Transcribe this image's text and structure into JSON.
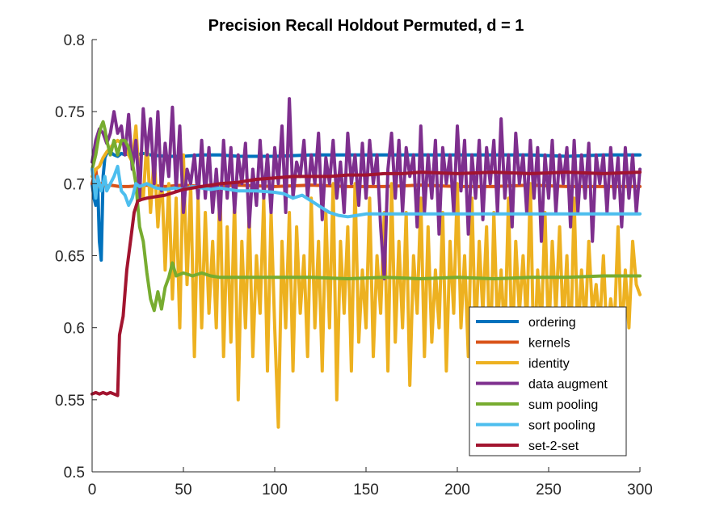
{
  "chart_data": {
    "type": "line",
    "title": "Precision Recall Holdout Permuted, d = 1",
    "xlabel": "",
    "ylabel": "",
    "xlim": [
      0,
      300
    ],
    "ylim": [
      0.5,
      0.8
    ],
    "xticks": [
      0,
      50,
      100,
      150,
      200,
      250,
      300
    ],
    "xtick_labels": [
      "0",
      "50",
      "100",
      "150",
      "200",
      "250",
      "300"
    ],
    "yticks": [
      0.5,
      0.55,
      0.6,
      0.65,
      0.7,
      0.75,
      0.8
    ],
    "ytick_labels": [
      "0.5",
      "0.55",
      "0.6",
      "0.65",
      "0.7",
      "0.75",
      "0.8"
    ],
    "grid": false,
    "legend_position": "bottom-right",
    "series": [
      {
        "name": "ordering",
        "color": "#0072BD",
        "x": [
          0,
          1,
          2,
          3,
          4,
          5,
          6,
          7,
          8,
          10,
          12,
          14,
          16,
          18,
          20,
          24,
          28,
          32,
          40,
          50,
          60,
          70,
          80,
          90,
          100,
          120,
          140,
          160,
          180,
          200,
          220,
          240,
          260,
          280,
          300
        ],
        "y": [
          0.7,
          0.69,
          0.685,
          0.702,
          0.66,
          0.647,
          0.705,
          0.718,
          0.721,
          0.722,
          0.72,
          0.719,
          0.721,
          0.72,
          0.721,
          0.72,
          0.721,
          0.72,
          0.719,
          0.719,
          0.72,
          0.72,
          0.719,
          0.719,
          0.719,
          0.72,
          0.72,
          0.72,
          0.72,
          0.72,
          0.72,
          0.72,
          0.719,
          0.72,
          0.72
        ]
      },
      {
        "name": "kernels",
        "color": "#D95319",
        "x": [
          0,
          1,
          2,
          3,
          4,
          5,
          6,
          8,
          10,
          15,
          20,
          30,
          40,
          50,
          60,
          80,
          100,
          120,
          140,
          160,
          180,
          200,
          220,
          240,
          260,
          280,
          300
        ],
        "y": [
          0.7,
          0.705,
          0.71,
          0.7,
          0.698,
          0.7,
          0.699,
          0.698,
          0.699,
          0.698,
          0.698,
          0.699,
          0.698,
          0.699,
          0.698,
          0.699,
          0.698,
          0.699,
          0.698,
          0.698,
          0.699,
          0.698,
          0.698,
          0.699,
          0.698,
          0.698,
          0.698
        ]
      },
      {
        "name": "identity",
        "color": "#EDB120",
        "x": [
          0,
          2,
          4,
          6,
          8,
          10,
          12,
          14,
          16,
          18,
          20,
          22,
          24,
          26,
          28,
          30,
          32,
          34,
          36,
          38,
          40,
          42,
          44,
          46,
          48,
          50,
          52,
          54,
          56,
          58,
          60,
          62,
          64,
          66,
          68,
          70,
          72,
          74,
          76,
          78,
          80,
          82,
          84,
          86,
          88,
          90,
          92,
          94,
          96,
          98,
          100,
          102,
          104,
          106,
          108,
          110,
          112,
          114,
          116,
          118,
          120,
          122,
          124,
          126,
          128,
          130,
          132,
          134,
          136,
          138,
          140,
          142,
          144,
          146,
          148,
          150,
          152,
          154,
          156,
          158,
          160,
          162,
          164,
          166,
          168,
          170,
          172,
          174,
          176,
          178,
          180,
          182,
          184,
          186,
          188,
          190,
          192,
          194,
          196,
          198,
          200,
          202,
          204,
          206,
          208,
          210,
          212,
          214,
          216,
          218,
          220,
          222,
          224,
          226,
          228,
          230,
          232,
          234,
          236,
          238,
          240,
          242,
          244,
          246,
          248,
          250,
          252,
          254,
          256,
          258,
          260,
          262,
          264,
          266,
          268,
          270,
          272,
          274,
          276,
          278,
          280,
          282,
          284,
          286,
          288,
          290,
          292,
          294,
          296,
          298,
          300
        ],
        "y": [
          0.705,
          0.71,
          0.712,
          0.718,
          0.722,
          0.725,
          0.728,
          0.73,
          0.728,
          0.727,
          0.72,
          0.715,
          0.74,
          0.7,
          0.69,
          0.73,
          0.68,
          0.72,
          0.67,
          0.71,
          0.64,
          0.7,
          0.62,
          0.69,
          0.6,
          0.72,
          0.63,
          0.7,
          0.58,
          0.69,
          0.6,
          0.68,
          0.61,
          0.66,
          0.6,
          0.7,
          0.58,
          0.67,
          0.59,
          0.69,
          0.55,
          0.66,
          0.6,
          0.68,
          0.58,
          0.65,
          0.61,
          0.69,
          0.57,
          0.68,
          0.6,
          0.531,
          0.66,
          0.6,
          0.68,
          0.57,
          0.67,
          0.61,
          0.65,
          0.58,
          0.69,
          0.6,
          0.66,
          0.57,
          0.68,
          0.6,
          0.7,
          0.55,
          0.66,
          0.61,
          0.67,
          0.57,
          0.7,
          0.59,
          0.64,
          0.6,
          0.69,
          0.58,
          0.65,
          0.61,
          0.68,
          0.57,
          0.7,
          0.59,
          0.66,
          0.6,
          0.68,
          0.56,
          0.65,
          0.61,
          0.69,
          0.58,
          0.67,
          0.59,
          0.64,
          0.6,
          0.68,
          0.57,
          0.66,
          0.61,
          0.7,
          0.6,
          0.65,
          0.58,
          0.69,
          0.59,
          0.66,
          0.61,
          0.67,
          0.57,
          0.68,
          0.6,
          0.64,
          0.59,
          0.69,
          0.58,
          0.66,
          0.61,
          0.65,
          0.6,
          0.7,
          0.57,
          0.64,
          0.6,
          0.68,
          0.59,
          0.66,
          0.61,
          0.67,
          0.6,
          0.65,
          0.58,
          0.69,
          0.59,
          0.64,
          0.6,
          0.66,
          0.61,
          0.63,
          0.6,
          0.65,
          0.59,
          0.62,
          0.6,
          0.67,
          0.59,
          0.64,
          0.6,
          0.66,
          0.63,
          0.623
        ]
      },
      {
        "name": "data augment",
        "color": "#7E2F8E",
        "x": [
          0,
          2,
          4,
          6,
          8,
          10,
          12,
          14,
          16,
          18,
          20,
          22,
          24,
          26,
          28,
          30,
          32,
          34,
          36,
          38,
          40,
          42,
          44,
          46,
          48,
          50,
          52,
          54,
          56,
          58,
          60,
          62,
          64,
          66,
          68,
          70,
          72,
          74,
          76,
          78,
          80,
          82,
          84,
          86,
          88,
          90,
          92,
          94,
          96,
          98,
          100,
          102,
          104,
          106,
          108,
          110,
          112,
          114,
          116,
          118,
          120,
          122,
          124,
          126,
          128,
          130,
          132,
          134,
          136,
          138,
          140,
          142,
          144,
          146,
          148,
          150,
          152,
          154,
          156,
          158,
          160,
          162,
          164,
          166,
          168,
          170,
          172,
          174,
          176,
          178,
          180,
          182,
          184,
          186,
          188,
          190,
          192,
          194,
          196,
          198,
          200,
          202,
          204,
          206,
          208,
          210,
          212,
          214,
          216,
          218,
          220,
          222,
          224,
          226,
          228,
          230,
          232,
          234,
          236,
          238,
          240,
          242,
          244,
          246,
          248,
          250,
          252,
          254,
          256,
          258,
          260,
          262,
          264,
          266,
          268,
          270,
          272,
          274,
          276,
          278,
          280,
          282,
          284,
          286,
          288,
          290,
          292,
          294,
          296,
          298,
          300
        ],
        "y": [
          0.715,
          0.73,
          0.738,
          0.735,
          0.728,
          0.735,
          0.75,
          0.735,
          0.74,
          0.72,
          0.748,
          0.71,
          0.73,
          0.69,
          0.752,
          0.72,
          0.745,
          0.7,
          0.75,
          0.695,
          0.728,
          0.705,
          0.753,
          0.695,
          0.74,
          0.68,
          0.71,
          0.7,
          0.72,
          0.69,
          0.73,
          0.69,
          0.725,
          0.68,
          0.71,
          0.675,
          0.73,
          0.69,
          0.725,
          0.68,
          0.72,
          0.7,
          0.728,
          0.67,
          0.71,
          0.685,
          0.73,
          0.69,
          0.72,
          0.68,
          0.725,
          0.7,
          0.74,
          0.68,
          0.759,
          0.69,
          0.715,
          0.705,
          0.73,
          0.69,
          0.72,
          0.7,
          0.735,
          0.675,
          0.718,
          0.7,
          0.73,
          0.69,
          0.715,
          0.68,
          0.735,
          0.7,
          0.72,
          0.685,
          0.728,
          0.69,
          0.73,
          0.7,
          0.72,
          0.67,
          0.634,
          0.71,
          0.735,
          0.69,
          0.73,
          0.68,
          0.725,
          0.705,
          0.72,
          0.67,
          0.74,
          0.68,
          0.72,
          0.69,
          0.73,
          0.665,
          0.725,
          0.7,
          0.72,
          0.68,
          0.74,
          0.695,
          0.73,
          0.665,
          0.72,
          0.69,
          0.73,
          0.675,
          0.725,
          0.7,
          0.73,
          0.68,
          0.745,
          0.69,
          0.72,
          0.67,
          0.735,
          0.7,
          0.72,
          0.68,
          0.73,
          0.69,
          0.725,
          0.66,
          0.72,
          0.69,
          0.73,
          0.68,
          0.72,
          0.7,
          0.725,
          0.67,
          0.73,
          0.68,
          0.72,
          0.69,
          0.728,
          0.66,
          0.72,
          0.7,
          0.72,
          0.68,
          0.725,
          0.69,
          0.718,
          0.67,
          0.725,
          0.69,
          0.72,
          0.68,
          0.71
        ]
      },
      {
        "name": "sum pooling",
        "color": "#77AC30",
        "x": [
          0,
          1,
          2,
          3,
          4,
          5,
          6,
          7,
          8,
          10,
          12,
          14,
          16,
          18,
          20,
          22,
          24,
          26,
          28,
          30,
          32,
          34,
          36,
          38,
          40,
          42,
          44,
          46,
          50,
          55,
          60,
          65,
          70,
          80,
          100,
          120,
          140,
          160,
          180,
          200,
          220,
          240,
          260,
          280,
          300
        ],
        "y": [
          0.71,
          0.715,
          0.72,
          0.728,
          0.735,
          0.74,
          0.743,
          0.738,
          0.73,
          0.72,
          0.73,
          0.72,
          0.73,
          0.73,
          0.725,
          0.715,
          0.7,
          0.67,
          0.66,
          0.638,
          0.62,
          0.612,
          0.625,
          0.613,
          0.628,
          0.635,
          0.645,
          0.636,
          0.638,
          0.636,
          0.638,
          0.636,
          0.635,
          0.635,
          0.635,
          0.635,
          0.634,
          0.635,
          0.634,
          0.635,
          0.634,
          0.635,
          0.635,
          0.636,
          0.636
        ]
      },
      {
        "name": "sort pooling",
        "color": "#4DBEEE",
        "x": [
          0,
          1,
          2,
          3,
          4,
          5,
          6,
          7,
          8,
          10,
          12,
          14,
          16,
          18,
          20,
          22,
          24,
          26,
          30,
          35,
          40,
          45,
          50,
          55,
          60,
          65,
          70,
          80,
          90,
          100,
          105,
          110,
          115,
          120,
          125,
          130,
          135,
          140,
          145,
          150,
          160,
          180,
          200,
          220,
          240,
          260,
          280,
          300
        ],
        "y": [
          0.71,
          0.7,
          0.69,
          0.705,
          0.7,
          0.695,
          0.7,
          0.705,
          0.695,
          0.7,
          0.705,
          0.712,
          0.695,
          0.692,
          0.685,
          0.69,
          0.7,
          0.698,
          0.7,
          0.697,
          0.696,
          0.697,
          0.696,
          0.698,
          0.697,
          0.696,
          0.697,
          0.695,
          0.695,
          0.694,
          0.693,
          0.69,
          0.692,
          0.688,
          0.684,
          0.68,
          0.678,
          0.677,
          0.678,
          0.679,
          0.679,
          0.679,
          0.679,
          0.679,
          0.679,
          0.679,
          0.679,
          0.679
        ]
      },
      {
        "name": "set-2-set",
        "color": "#A2142F",
        "x": [
          0,
          2,
          4,
          6,
          8,
          10,
          12,
          14,
          15,
          17,
          19,
          21,
          23,
          25,
          27,
          30,
          35,
          40,
          50,
          60,
          70,
          80,
          90,
          100,
          110,
          120,
          130,
          140,
          150,
          160,
          170,
          180,
          200,
          220,
          240,
          260,
          280,
          300
        ],
        "y": [
          0.554,
          0.555,
          0.554,
          0.555,
          0.554,
          0.555,
          0.554,
          0.553,
          0.595,
          0.608,
          0.64,
          0.66,
          0.68,
          0.688,
          0.689,
          0.69,
          0.691,
          0.692,
          0.696,
          0.698,
          0.7,
          0.701,
          0.703,
          0.704,
          0.705,
          0.705,
          0.705,
          0.706,
          0.706,
          0.707,
          0.707,
          0.708,
          0.707,
          0.708,
          0.707,
          0.708,
          0.707,
          0.708
        ]
      }
    ]
  }
}
